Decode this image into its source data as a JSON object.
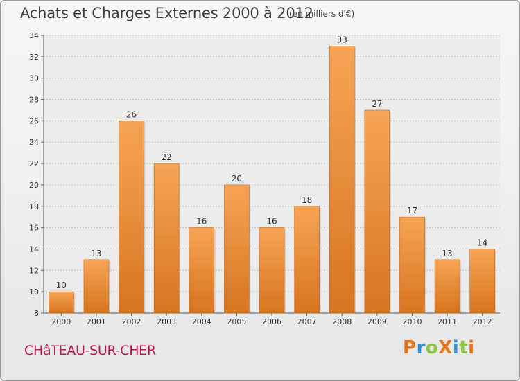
{
  "header": {
    "title": "Achats et Charges Externes 2000 à 2012",
    "subtitle": "(en milliers d'€)"
  },
  "footer": {
    "city": "CHâTEAU-SUR-CHER",
    "logo": "ProXiti"
  },
  "colors": {
    "bar_light": "#f6a555",
    "bar_dark": "#d8741f",
    "city": "#c0144c",
    "logo_letters": [
      "#e8731c",
      "#3a8fd4",
      "#8cc63f",
      "#e8731c",
      "#3a8fd4",
      "#8cc63f",
      "#e8731c"
    ]
  },
  "chart_data": {
    "type": "bar",
    "title": "Achats et Charges Externes 2000 à 2012",
    "subtitle": "(en milliers d'€)",
    "categories": [
      "2000",
      "2001",
      "2002",
      "2003",
      "2004",
      "2005",
      "2006",
      "2007",
      "2008",
      "2009",
      "2010",
      "2011",
      "2012"
    ],
    "values": [
      10,
      13,
      26,
      22,
      16,
      20,
      16,
      18,
      33,
      27,
      17,
      13,
      14
    ],
    "ylim": [
      8,
      34
    ],
    "yticks": [
      8,
      10,
      12,
      14,
      16,
      18,
      20,
      22,
      24,
      26,
      28,
      30,
      32,
      34
    ],
    "grid": true,
    "xlabel": "",
    "ylabel": ""
  }
}
